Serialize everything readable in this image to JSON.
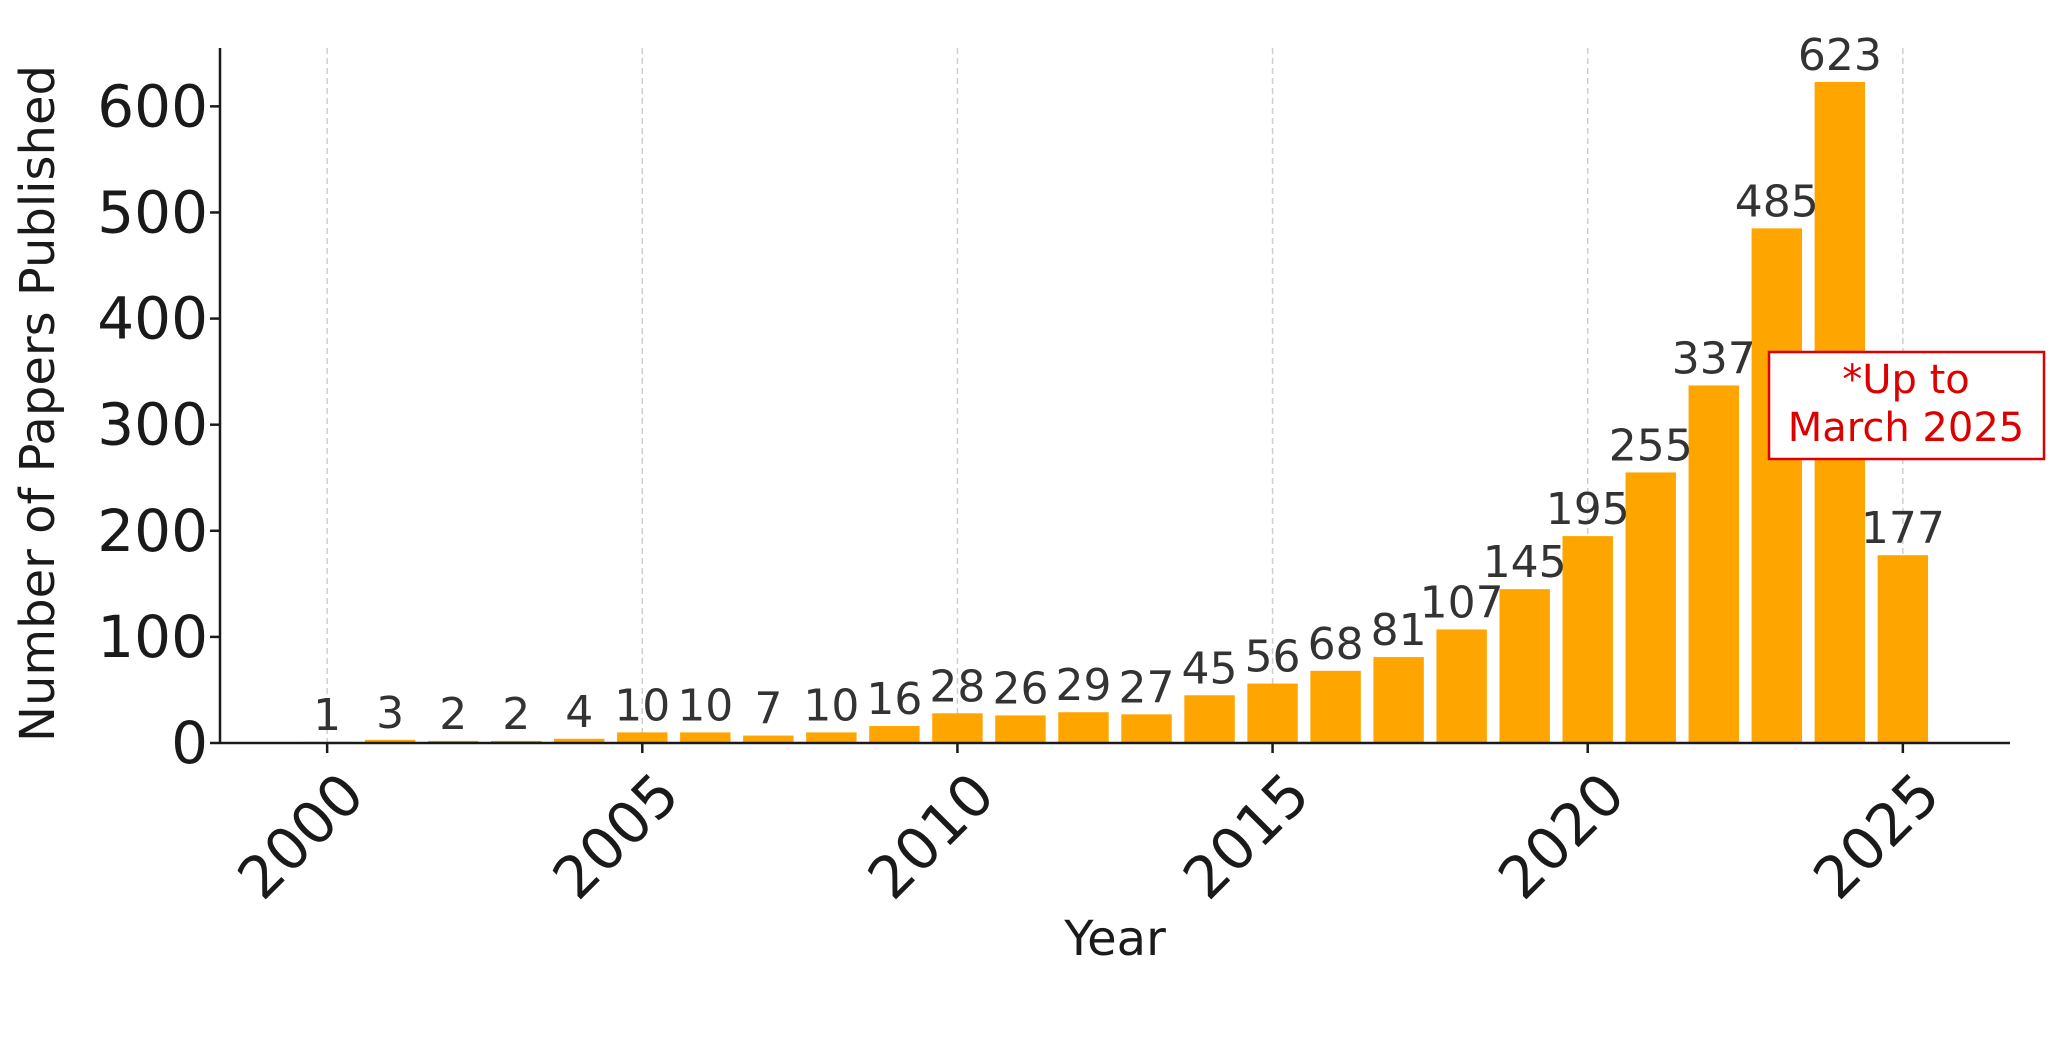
{
  "chart_data": {
    "type": "bar",
    "title": "",
    "xlabel": "Year",
    "ylabel": "Number of Papers Published",
    "categories": [
      2000,
      2001,
      2002,
      2003,
      2004,
      2005,
      2006,
      2007,
      2008,
      2009,
      2010,
      2011,
      2012,
      2013,
      2014,
      2015,
      2016,
      2017,
      2018,
      2019,
      2020,
      2021,
      2022,
      2023,
      2024,
      2025
    ],
    "values": [
      1,
      3,
      2,
      2,
      4,
      10,
      10,
      7,
      10,
      16,
      28,
      26,
      29,
      27,
      45,
      56,
      68,
      81,
      107,
      145,
      195,
      255,
      337,
      485,
      623,
      177
    ],
    "data_labels": [
      "1",
      "3",
      "2",
      "2",
      "4",
      "10",
      "10",
      "7",
      "10",
      "16",
      "28",
      "26",
      "29",
      "27",
      "45",
      "56",
      "68",
      "81",
      "107",
      "145",
      "195",
      "255",
      "337",
      "485",
      "623",
      "177"
    ],
    "xticks": [
      "2000",
      "2005",
      "2010",
      "2015",
      "2020",
      "2025"
    ],
    "yticks": [
      "0",
      "100",
      "200",
      "300",
      "400",
      "500",
      "600"
    ],
    "ylim": [
      0,
      655
    ],
    "xlim": [
      1998.3,
      2026.7
    ],
    "grid": "vertical dashed",
    "colors": {
      "bar": "#FFA500",
      "annotation": "#DD0000",
      "axis": "#1a1a1a"
    },
    "annotation": {
      "line1": "*Up to",
      "line2": "March 2025"
    }
  }
}
